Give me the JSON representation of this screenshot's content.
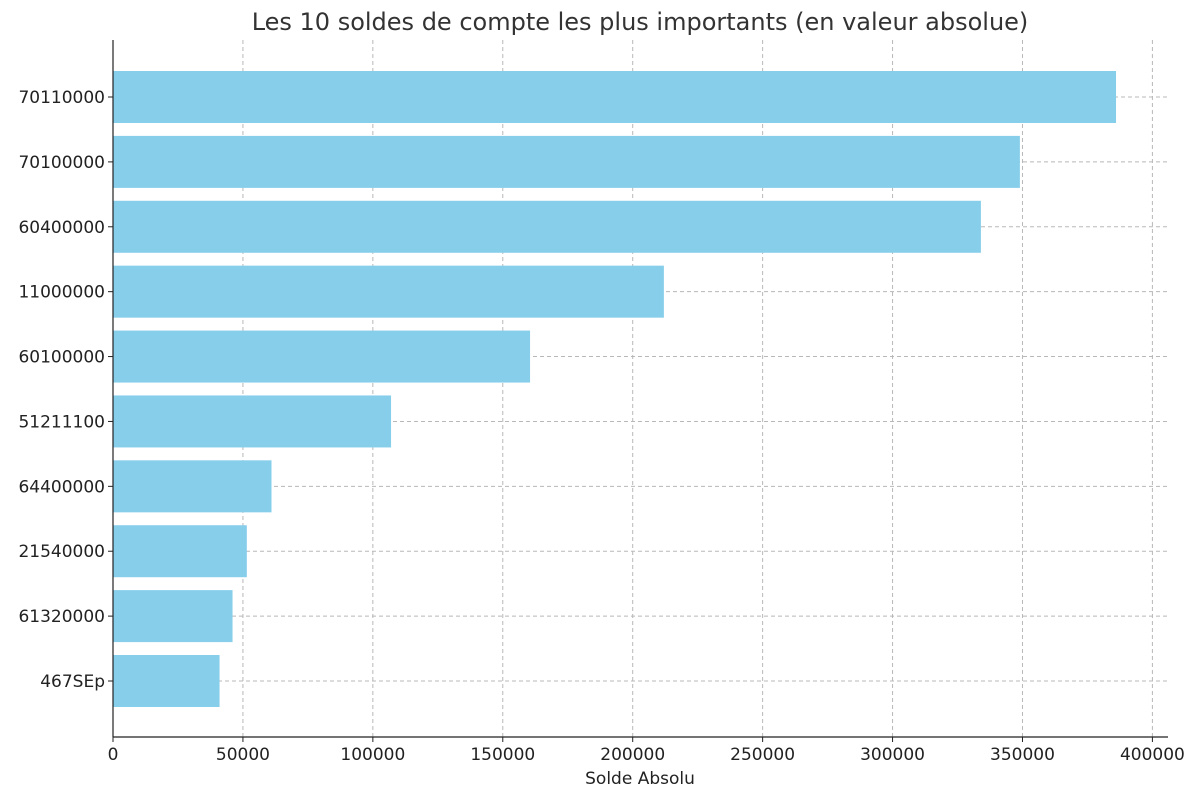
{
  "chart_data": {
    "type": "bar",
    "orientation": "horizontal",
    "title": "Les 10 soldes de compte les plus importants (en valeur absolue)",
    "xlabel": "Solde Absolu",
    "ylabel": "",
    "categories": [
      "70110000",
      "70100000",
      "60400000",
      "11000000",
      "60100000",
      "51211100",
      "64400000",
      "21540000",
      "61320000",
      "467SEp"
    ],
    "values": [
      386000,
      349000,
      334000,
      212000,
      160500,
      107000,
      61000,
      51500,
      46000,
      41000
    ],
    "xlim": [
      0,
      406000
    ],
    "xticks": [
      0,
      50000,
      100000,
      150000,
      200000,
      250000,
      300000,
      350000,
      400000
    ],
    "xtick_labels": [
      "0",
      "50000",
      "100000",
      "150000",
      "200000",
      "250000",
      "300000",
      "350000",
      "400000"
    ],
    "grid": true,
    "bar_color": "#87CEEB"
  }
}
